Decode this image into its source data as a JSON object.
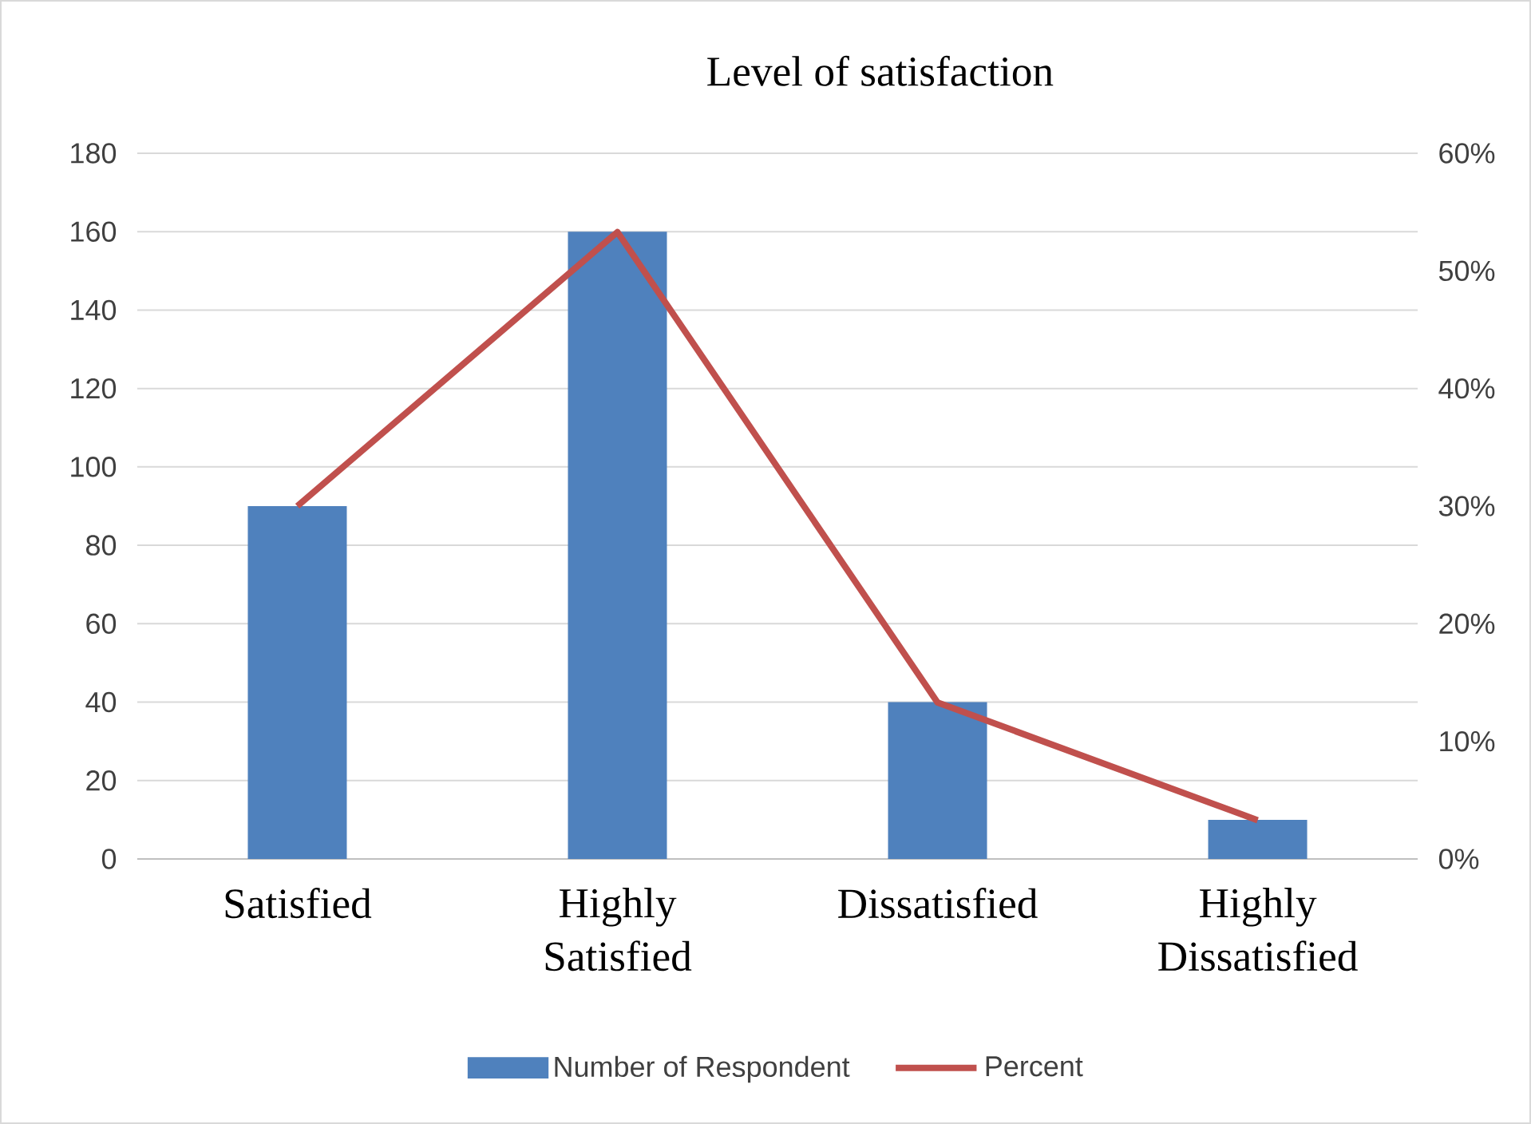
{
  "chart_data": {
    "type": "bar",
    "title": "Level of satisfaction",
    "categories": [
      "Satisfied",
      "Highly Satisfied",
      "Dissatisfied",
      "Highly Dissatisfied"
    ],
    "series": [
      {
        "name": "Number of Respondent",
        "color": "#4f81bd",
        "values": [
          90,
          160,
          40,
          10
        ]
      },
      {
        "name": "Percent",
        "type": "line",
        "axis": "y2",
        "color": "#c0504d",
        "values": [
          30,
          53.3,
          13.3,
          3.3
        ]
      }
    ],
    "ylim": [
      0,
      180
    ],
    "yticks": [
      0,
      20,
      40,
      60,
      80,
      100,
      120,
      140,
      160,
      180
    ],
    "y2lim": [
      0,
      60
    ],
    "y2ticks": [
      {
        "value": 0,
        "label": "0%"
      },
      {
        "value": 10,
        "label": "10%"
      },
      {
        "value": 20,
        "label": "20%"
      },
      {
        "value": 30,
        "label": "30%"
      },
      {
        "value": 40,
        "label": "40%"
      },
      {
        "value": 50,
        "label": "50%"
      },
      {
        "value": 60,
        "label": "60%"
      }
    ],
    "grid": "y",
    "legend": "bottom"
  }
}
